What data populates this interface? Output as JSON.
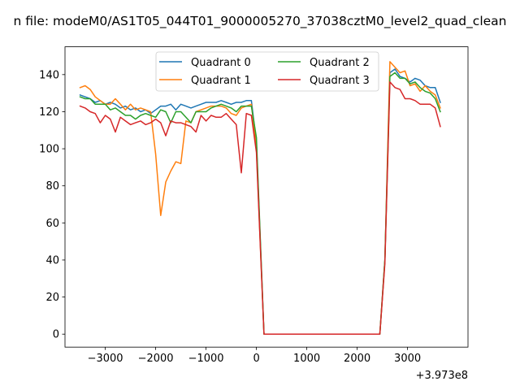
{
  "chart_data": {
    "type": "line",
    "title": "n file: modeM0/AS1T05_044T01_9000005270_37038cztM0_level2_quad_clean",
    "xlabel": "",
    "ylabel": "",
    "x_offset_label": "+3.973e8",
    "xlim": [
      -3800,
      4200
    ],
    "ylim": [
      -7,
      155
    ],
    "xticks": [
      -3000,
      -2000,
      -1000,
      0,
      1000,
      2000,
      3000
    ],
    "xtick_labels": [
      "−3000",
      "−2000",
      "−1000",
      "0",
      "1000",
      "2000",
      "3000"
    ],
    "yticks": [
      0,
      20,
      40,
      60,
      80,
      100,
      120,
      140
    ],
    "ytick_labels": [
      "0",
      "20",
      "40",
      "60",
      "80",
      "100",
      "120",
      "140"
    ],
    "legend_position": "top-center",
    "legend_columns": 2,
    "grid": false,
    "series": [
      {
        "name": "Quadrant 0",
        "color": "#1f77b4",
        "x": [
          -3500,
          -3400,
          -3300,
          -3200,
          -3100,
          -3000,
          -2900,
          -2800,
          -2700,
          -2600,
          -2500,
          -2400,
          -2300,
          -2200,
          -2100,
          -2000,
          -1900,
          -1800,
          -1700,
          -1600,
          -1500,
          -1400,
          -1300,
          -1200,
          -1100,
          -1000,
          -900,
          -800,
          -700,
          -600,
          -500,
          -400,
          -300,
          -200,
          -100,
          0,
          150,
          2450,
          2550,
          2650,
          2750,
          2850,
          2950,
          3050,
          3150,
          3250,
          3350,
          3450,
          3550,
          3650
        ],
        "y": [
          129,
          128,
          127,
          125,
          126,
          124,
          125,
          124,
          122,
          123,
          121,
          122,
          120,
          121,
          119,
          121,
          123,
          123,
          124,
          121,
          124,
          123,
          122,
          123,
          124,
          125,
          125,
          125,
          126,
          125,
          124,
          125,
          125,
          126,
          126,
          103,
          0,
          0,
          40,
          141,
          143,
          139,
          138,
          136,
          138,
          137,
          134,
          133,
          133,
          125
        ]
      },
      {
        "name": "Quadrant 1",
        "color": "#ff7f0e",
        "x": [
          -3500,
          -3400,
          -3300,
          -3200,
          -3100,
          -3000,
          -2900,
          -2800,
          -2700,
          -2600,
          -2500,
          -2400,
          -2300,
          -2200,
          -2100,
          -2000,
          -1900,
          -1800,
          -1700,
          -1600,
          -1500,
          -1400,
          -1300,
          -1200,
          -1100,
          -1000,
          -900,
          -800,
          -700,
          -600,
          -500,
          -400,
          -300,
          -200,
          -100,
          0,
          150,
          2450,
          2550,
          2650,
          2750,
          2850,
          2950,
          3050,
          3150,
          3250,
          3350,
          3450,
          3550,
          3650
        ],
        "y": [
          133,
          134,
          132,
          128,
          126,
          124,
          124,
          127,
          124,
          121,
          124,
          121,
          122,
          121,
          120,
          97,
          64,
          82,
          88,
          93,
          92,
          115,
          114,
          120,
          121,
          122,
          123,
          123,
          123,
          122,
          119,
          118,
          122,
          123,
          124,
          100,
          0,
          0,
          40,
          147,
          144,
          141,
          142,
          134,
          135,
          131,
          134,
          131,
          129,
          122
        ]
      },
      {
        "name": "Quadrant 2",
        "color": "#2ca02c",
        "x": [
          -3500,
          -3400,
          -3300,
          -3200,
          -3100,
          -3000,
          -2900,
          -2800,
          -2700,
          -2600,
          -2500,
          -2400,
          -2300,
          -2200,
          -2100,
          -2000,
          -1900,
          -1800,
          -1700,
          -1600,
          -1500,
          -1400,
          -1300,
          -1200,
          -1100,
          -1000,
          -900,
          -800,
          -700,
          -600,
          -500,
          -400,
          -300,
          -200,
          -100,
          0,
          150,
          2450,
          2550,
          2650,
          2750,
          2850,
          2950,
          3050,
          3150,
          3250,
          3350,
          3450,
          3550,
          3650
        ],
        "y": [
          128,
          127,
          127,
          124,
          124,
          124,
          121,
          122,
          120,
          118,
          118,
          116,
          118,
          119,
          118,
          117,
          121,
          120,
          114,
          120,
          120,
          117,
          114,
          120,
          120,
          120,
          122,
          123,
          124,
          123,
          122,
          120,
          123,
          123,
          123,
          106,
          0,
          0,
          40,
          139,
          141,
          138,
          138,
          135,
          136,
          133,
          131,
          130,
          127,
          120
        ]
      },
      {
        "name": "Quadrant 3",
        "color": "#d62728",
        "x": [
          -3500,
          -3400,
          -3300,
          -3200,
          -3100,
          -3000,
          -2900,
          -2800,
          -2700,
          -2600,
          -2500,
          -2400,
          -2300,
          -2200,
          -2100,
          -2000,
          -1900,
          -1800,
          -1700,
          -1600,
          -1500,
          -1400,
          -1300,
          -1200,
          -1100,
          -1000,
          -900,
          -800,
          -700,
          -600,
          -500,
          -400,
          -300,
          -200,
          -100,
          0,
          150,
          2450,
          2550,
          2650,
          2750,
          2850,
          2950,
          3050,
          3150,
          3250,
          3350,
          3450,
          3550,
          3650
        ],
        "y": [
          123,
          122,
          120,
          119,
          114,
          118,
          116,
          109,
          117,
          115,
          113,
          114,
          115,
          113,
          114,
          116,
          114,
          107,
          115,
          114,
          114,
          113,
          112,
          109,
          118,
          115,
          118,
          117,
          117,
          119,
          116,
          113,
          87,
          119,
          118,
          98,
          0,
          0,
          38,
          136,
          133,
          132,
          127,
          127,
          126,
          124,
          124,
          124,
          122,
          112
        ]
      }
    ]
  }
}
